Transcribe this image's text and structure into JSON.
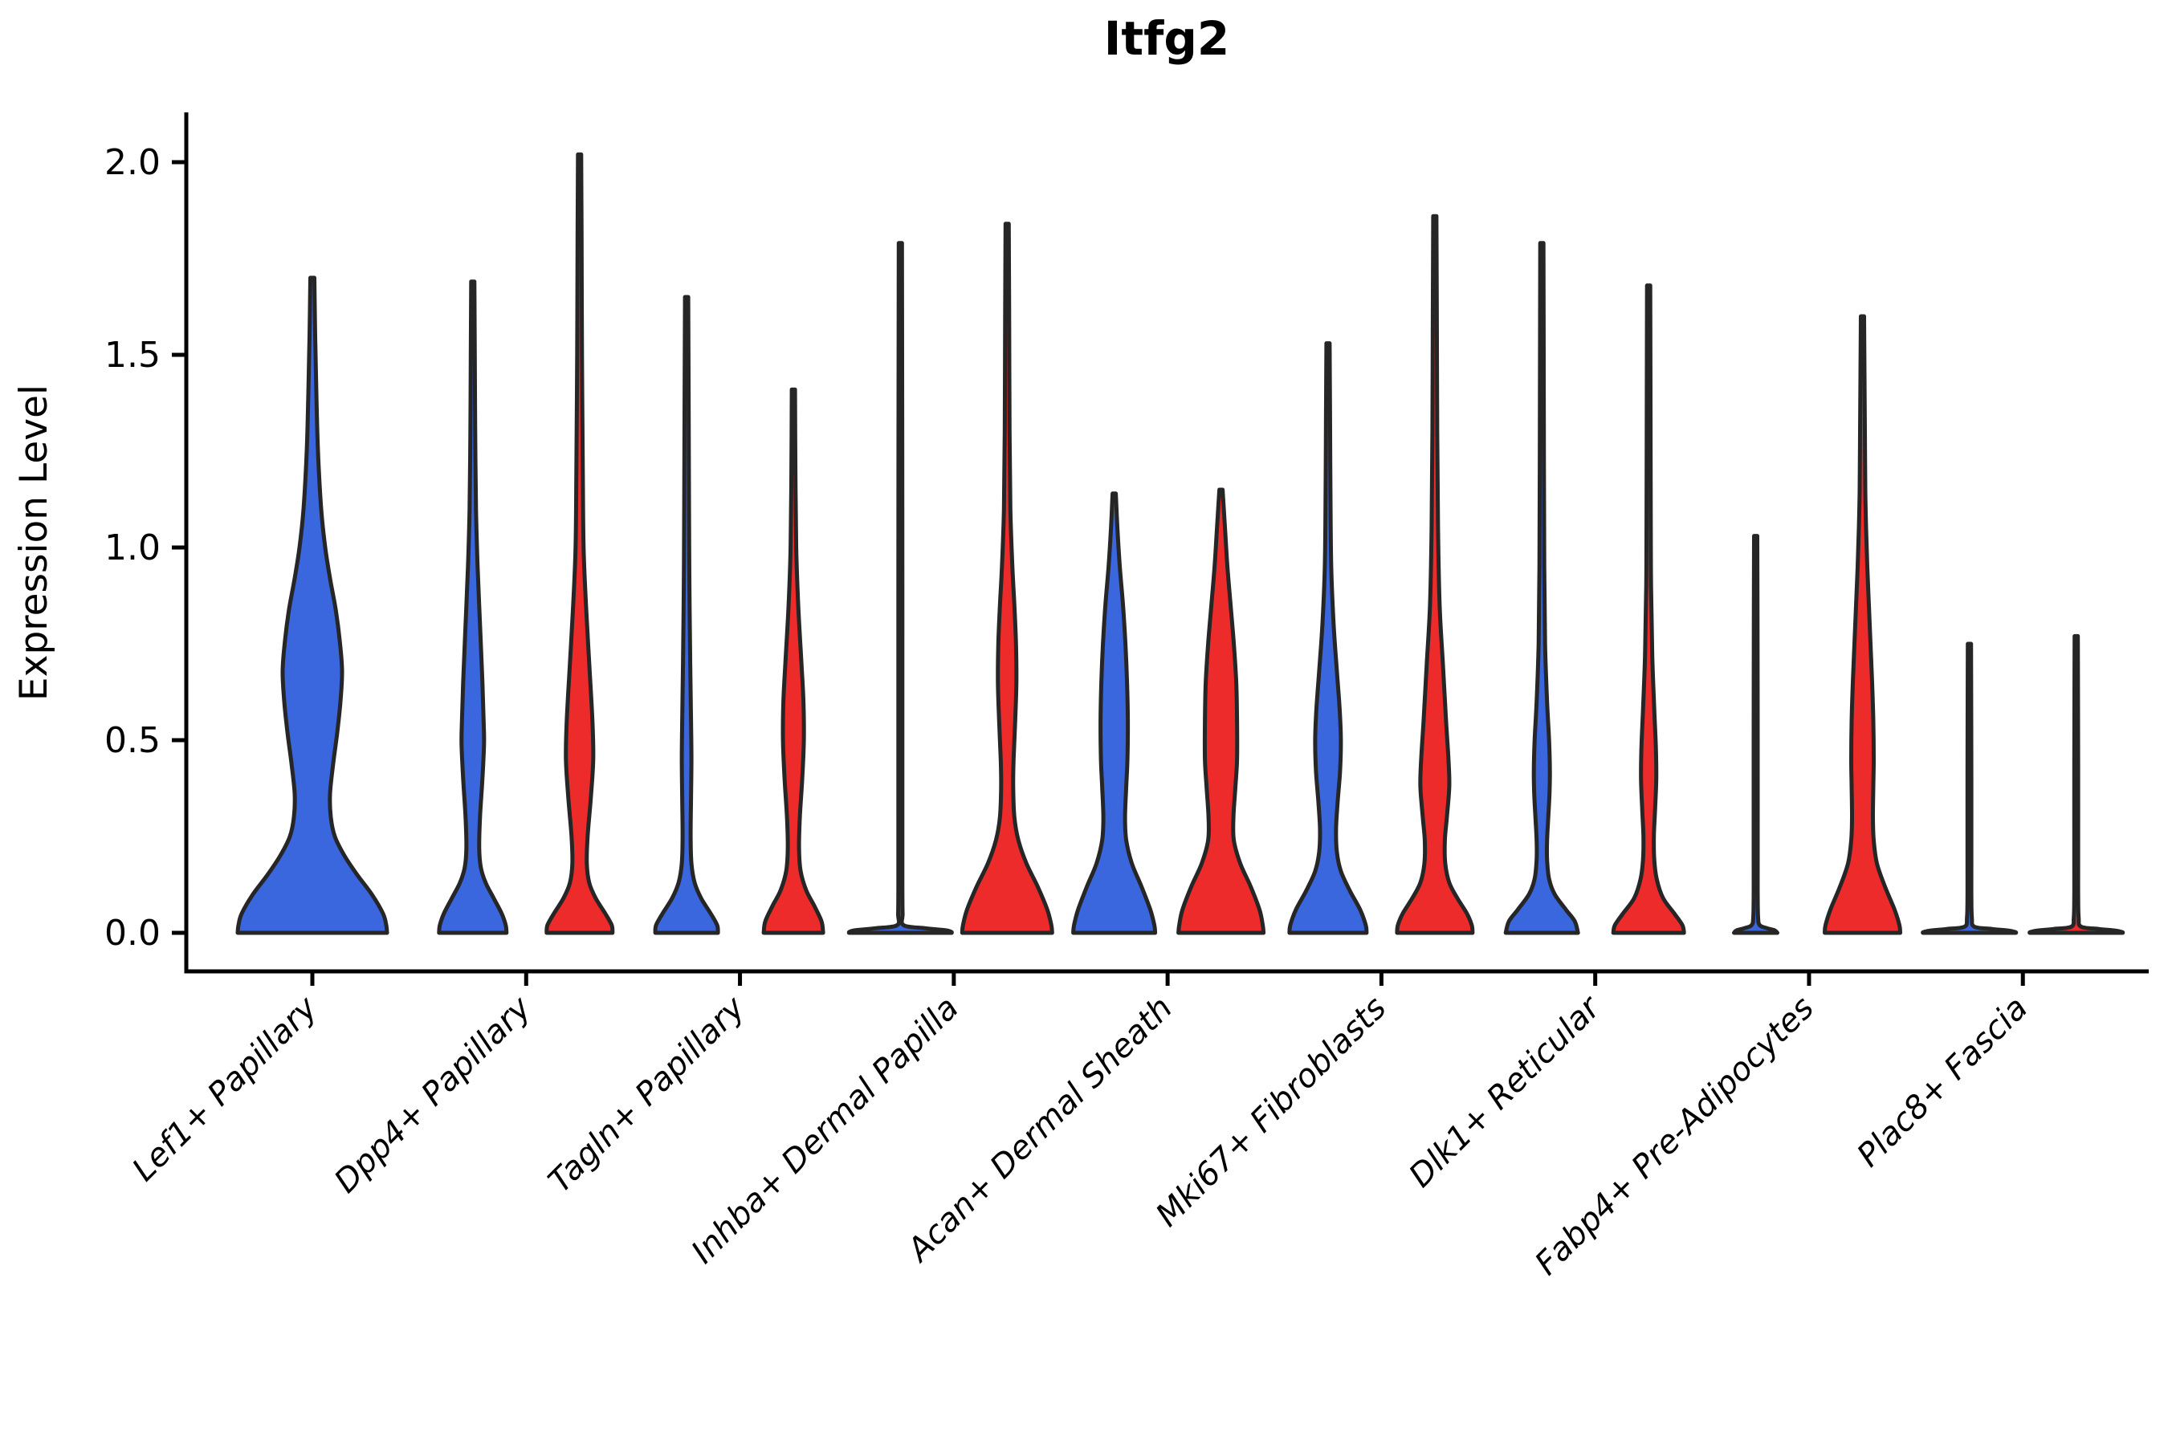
{
  "title": "Itfg2",
  "ylabel": "Expression Level",
  "colors": {
    "group_blue": "#3A66DE",
    "group_red": "#EE2B2B",
    "violin_edge": "#262626",
    "axis": "#000000",
    "background": "#ffffff"
  },
  "chart_data": {
    "type": "violin",
    "title": "Itfg2",
    "ylabel": "Expression Level",
    "xlabel": "",
    "ylim": [
      0,
      2.125
    ],
    "grid": false,
    "legend": "none",
    "y_ticks": [
      0.0,
      0.5,
      1.0,
      1.5,
      2.0
    ],
    "y_tick_labels": [
      "0.0",
      "0.5",
      "1.0",
      "1.5",
      "2.0"
    ],
    "categories": [
      "Lef1+ Papillary",
      "Dpp4+ Papillary",
      "Tagln+ Papillary",
      "Inhba+ Dermal Papilla",
      "Acan+ Dermal Sheath",
      "Mki67+ Fibroblasts",
      "Dlk1+ Reticular",
      "Fabp4+ Pre-Adipocytes",
      "Plac8+ Fascia"
    ],
    "groups": [
      {
        "name": "group-blue",
        "color": "#3A66DE"
      },
      {
        "name": "group-red",
        "color": "#EE2B2B"
      }
    ],
    "violins": [
      {
        "category_index": 0,
        "group": 0,
        "solo": true,
        "max_expression": 1.7,
        "profile": [
          [
            1.7,
            2.5
          ],
          [
            1.55,
            3.5
          ],
          [
            1.4,
            5
          ],
          [
            1.25,
            7
          ],
          [
            1.1,
            11
          ],
          [
            1.0,
            16
          ],
          [
            0.92,
            22
          ],
          [
            0.84,
            29
          ],
          [
            0.76,
            34
          ],
          [
            0.68,
            37
          ],
          [
            0.6,
            35
          ],
          [
            0.52,
            31
          ],
          [
            0.44,
            26
          ],
          [
            0.36,
            22
          ],
          [
            0.3,
            23
          ],
          [
            0.25,
            28
          ],
          [
            0.2,
            40
          ],
          [
            0.15,
            56
          ],
          [
            0.1,
            74
          ],
          [
            0.05,
            88
          ],
          [
            0.02,
            92
          ],
          [
            0,
            93
          ]
        ]
      },
      {
        "category_index": 1,
        "group": 0,
        "solo": false,
        "max_expression": 1.69,
        "profile": [
          [
            1.69,
            2
          ],
          [
            1.5,
            2.5
          ],
          [
            1.3,
            3
          ],
          [
            1.1,
            4
          ],
          [
            0.95,
            6
          ],
          [
            0.8,
            9
          ],
          [
            0.65,
            12
          ],
          [
            0.55,
            13.5
          ],
          [
            0.49,
            14
          ],
          [
            0.4,
            12
          ],
          [
            0.3,
            9
          ],
          [
            0.22,
            8
          ],
          [
            0.17,
            10
          ],
          [
            0.13,
            16
          ],
          [
            0.09,
            26
          ],
          [
            0.05,
            36
          ],
          [
            0.02,
            41
          ],
          [
            0,
            42
          ]
        ]
      },
      {
        "category_index": 1,
        "group": 1,
        "solo": false,
        "max_expression": 2.02,
        "profile": [
          [
            2.02,
            2
          ],
          [
            1.8,
            2.5
          ],
          [
            1.5,
            3
          ],
          [
            1.2,
            4
          ],
          [
            1.0,
            5
          ],
          [
            0.85,
            8
          ],
          [
            0.7,
            12
          ],
          [
            0.55,
            16
          ],
          [
            0.45,
            17
          ],
          [
            0.35,
            14
          ],
          [
            0.25,
            10
          ],
          [
            0.18,
            9
          ],
          [
            0.13,
            12
          ],
          [
            0.09,
            20
          ],
          [
            0.05,
            32
          ],
          [
            0.02,
            40
          ],
          [
            0,
            41
          ]
        ]
      },
      {
        "category_index": 2,
        "group": 0,
        "solo": false,
        "max_expression": 1.65,
        "profile": [
          [
            1.65,
            2
          ],
          [
            1.4,
            2.5
          ],
          [
            1.1,
            3
          ],
          [
            0.9,
            3.5
          ],
          [
            0.7,
            4.5
          ],
          [
            0.55,
            5.5
          ],
          [
            0.45,
            6
          ],
          [
            0.35,
            5.5
          ],
          [
            0.25,
            5
          ],
          [
            0.18,
            6
          ],
          [
            0.13,
            10
          ],
          [
            0.09,
            18
          ],
          [
            0.05,
            30
          ],
          [
            0.02,
            38
          ],
          [
            0,
            39
          ]
        ]
      },
      {
        "category_index": 2,
        "group": 1,
        "solo": false,
        "max_expression": 1.41,
        "profile": [
          [
            1.41,
            2
          ],
          [
            1.2,
            2.5
          ],
          [
            1.0,
            3.5
          ],
          [
            0.85,
            6
          ],
          [
            0.7,
            10
          ],
          [
            0.6,
            12.5
          ],
          [
            0.5,
            13
          ],
          [
            0.4,
            11
          ],
          [
            0.3,
            8
          ],
          [
            0.22,
            7
          ],
          [
            0.16,
            9
          ],
          [
            0.11,
            16
          ],
          [
            0.07,
            26
          ],
          [
            0.03,
            35
          ],
          [
            0,
            37
          ]
        ]
      },
      {
        "category_index": 3,
        "group": 0,
        "solo": false,
        "max_expression": 1.79,
        "profile": [
          [
            1.79,
            2
          ],
          [
            1.5,
            2.2
          ],
          [
            1.2,
            2.4
          ],
          [
            0.9,
            2.5
          ],
          [
            0.6,
            2.5
          ],
          [
            0.3,
            2.5
          ],
          [
            0.12,
            2.5
          ],
          [
            0.05,
            2.8
          ],
          [
            0.02,
            4
          ],
          [
            0.012,
            30
          ],
          [
            0.007,
            55
          ],
          [
            0.003,
            63
          ],
          [
            0,
            64
          ]
        ]
      },
      {
        "category_index": 3,
        "group": 1,
        "solo": false,
        "max_expression": 1.84,
        "profile": [
          [
            1.84,
            2
          ],
          [
            1.6,
            2.5
          ],
          [
            1.3,
            3
          ],
          [
            1.1,
            4
          ],
          [
            0.95,
            6.5
          ],
          [
            0.85,
            9
          ],
          [
            0.75,
            11
          ],
          [
            0.65,
            11.5
          ],
          [
            0.55,
            10
          ],
          [
            0.45,
            8
          ],
          [
            0.38,
            7.5
          ],
          [
            0.3,
            9
          ],
          [
            0.24,
            14
          ],
          [
            0.18,
            24
          ],
          [
            0.12,
            38
          ],
          [
            0.06,
            50
          ],
          [
            0.02,
            55
          ],
          [
            0,
            56
          ]
        ]
      },
      {
        "category_index": 4,
        "group": 0,
        "solo": false,
        "max_expression": 1.14,
        "profile": [
          [
            1.14,
            2
          ],
          [
            1.05,
            4
          ],
          [
            0.95,
            7
          ],
          [
            0.85,
            11
          ],
          [
            0.75,
            14
          ],
          [
            0.65,
            16
          ],
          [
            0.55,
            17
          ],
          [
            0.45,
            16.5
          ],
          [
            0.38,
            15
          ],
          [
            0.3,
            13.5
          ],
          [
            0.24,
            15
          ],
          [
            0.18,
            22
          ],
          [
            0.12,
            34
          ],
          [
            0.06,
            45
          ],
          [
            0.02,
            50
          ],
          [
            0,
            51
          ]
        ]
      },
      {
        "category_index": 4,
        "group": 1,
        "solo": false,
        "max_expression": 1.15,
        "profile": [
          [
            1.15,
            2
          ],
          [
            1.05,
            5
          ],
          [
            0.95,
            8
          ],
          [
            0.85,
            12
          ],
          [
            0.75,
            16
          ],
          [
            0.65,
            19
          ],
          [
            0.55,
            20
          ],
          [
            0.45,
            20
          ],
          [
            0.38,
            18
          ],
          [
            0.3,
            15.5
          ],
          [
            0.24,
            16
          ],
          [
            0.18,
            24
          ],
          [
            0.12,
            37
          ],
          [
            0.06,
            48
          ],
          [
            0.02,
            52
          ],
          [
            0,
            53
          ]
        ]
      },
      {
        "category_index": 5,
        "group": 0,
        "solo": false,
        "max_expression": 1.53,
        "profile": [
          [
            1.53,
            2
          ],
          [
            1.35,
            2.5
          ],
          [
            1.15,
            3
          ],
          [
            0.95,
            4
          ],
          [
            0.8,
            7
          ],
          [
            0.68,
            11
          ],
          [
            0.58,
            14.5
          ],
          [
            0.5,
            16
          ],
          [
            0.42,
            15
          ],
          [
            0.34,
            12
          ],
          [
            0.27,
            10
          ],
          [
            0.21,
            11
          ],
          [
            0.16,
            16
          ],
          [
            0.11,
            27
          ],
          [
            0.06,
            40
          ],
          [
            0.02,
            47
          ],
          [
            0,
            48
          ]
        ]
      },
      {
        "category_index": 5,
        "group": 1,
        "solo": false,
        "max_expression": 1.86,
        "profile": [
          [
            1.86,
            2
          ],
          [
            1.6,
            2.5
          ],
          [
            1.3,
            3
          ],
          [
            1.05,
            4
          ],
          [
            0.85,
            6
          ],
          [
            0.7,
            10
          ],
          [
            0.55,
            14
          ],
          [
            0.45,
            17
          ],
          [
            0.38,
            18
          ],
          [
            0.3,
            15
          ],
          [
            0.24,
            12.5
          ],
          [
            0.18,
            13
          ],
          [
            0.13,
            18
          ],
          [
            0.09,
            28
          ],
          [
            0.05,
            40
          ],
          [
            0.02,
            46
          ],
          [
            0,
            47
          ]
        ]
      },
      {
        "category_index": 6,
        "group": 0,
        "solo": false,
        "max_expression": 1.79,
        "profile": [
          [
            1.79,
            2
          ],
          [
            1.5,
            2.3
          ],
          [
            1.2,
            2.6
          ],
          [
            0.95,
            3
          ],
          [
            0.75,
            4
          ],
          [
            0.6,
            6.5
          ],
          [
            0.5,
            9
          ],
          [
            0.42,
            10
          ],
          [
            0.36,
            9.5
          ],
          [
            0.3,
            8
          ],
          [
            0.24,
            6.5
          ],
          [
            0.19,
            6.5
          ],
          [
            0.14,
            9
          ],
          [
            0.1,
            16
          ],
          [
            0.06,
            30
          ],
          [
            0.03,
            41
          ],
          [
            0,
            45
          ]
        ]
      },
      {
        "category_index": 6,
        "group": 1,
        "solo": false,
        "max_expression": 1.68,
        "profile": [
          [
            1.68,
            2
          ],
          [
            1.4,
            2.3
          ],
          [
            1.1,
            2.6
          ],
          [
            0.9,
            3
          ],
          [
            0.72,
            4.5
          ],
          [
            0.58,
            7
          ],
          [
            0.48,
            9
          ],
          [
            0.4,
            9.5
          ],
          [
            0.32,
            8
          ],
          [
            0.25,
            6.5
          ],
          [
            0.19,
            7
          ],
          [
            0.14,
            10
          ],
          [
            0.09,
            18
          ],
          [
            0.05,
            32
          ],
          [
            0.02,
            42
          ],
          [
            0,
            44
          ]
        ]
      },
      {
        "category_index": 7,
        "group": 0,
        "solo": false,
        "max_expression": 1.03,
        "profile": [
          [
            1.03,
            2
          ],
          [
            0.8,
            2.3
          ],
          [
            0.5,
            2.5
          ],
          [
            0.2,
            2.5
          ],
          [
            0.1,
            2.5
          ],
          [
            0.04,
            3
          ],
          [
            0.02,
            5
          ],
          [
            0.012,
            14
          ],
          [
            0.006,
            24
          ],
          [
            0,
            27
          ]
        ]
      },
      {
        "category_index": 7,
        "group": 1,
        "solo": false,
        "max_expression": 1.6,
        "profile": [
          [
            1.6,
            2
          ],
          [
            1.45,
            2.5
          ],
          [
            1.3,
            3
          ],
          [
            1.15,
            3.5
          ],
          [
            1.05,
            4.5
          ],
          [
            0.95,
            6
          ],
          [
            0.85,
            8
          ],
          [
            0.75,
            10
          ],
          [
            0.65,
            12
          ],
          [
            0.55,
            13.5
          ],
          [
            0.45,
            14
          ],
          [
            0.38,
            13.5
          ],
          [
            0.3,
            13
          ],
          [
            0.24,
            14
          ],
          [
            0.18,
            18
          ],
          [
            0.12,
            28
          ],
          [
            0.06,
            40
          ],
          [
            0.02,
            46
          ],
          [
            0,
            47
          ]
        ]
      },
      {
        "category_index": 8,
        "group": 0,
        "solo": false,
        "max_expression": 0.75,
        "profile": [
          [
            0.75,
            2
          ],
          [
            0.6,
            2.2
          ],
          [
            0.4,
            2.4
          ],
          [
            0.2,
            2.4
          ],
          [
            0.1,
            2.4
          ],
          [
            0.04,
            3
          ],
          [
            0.016,
            6
          ],
          [
            0.01,
            28
          ],
          [
            0.006,
            48
          ],
          [
            0.002,
            57
          ],
          [
            0,
            58
          ]
        ]
      },
      {
        "category_index": 8,
        "group": 1,
        "solo": false,
        "max_expression": 0.77,
        "profile": [
          [
            0.77,
            2
          ],
          [
            0.62,
            2.2
          ],
          [
            0.42,
            2.4
          ],
          [
            0.2,
            2.4
          ],
          [
            0.1,
            2.4
          ],
          [
            0.04,
            3
          ],
          [
            0.016,
            6
          ],
          [
            0.01,
            28
          ],
          [
            0.006,
            48
          ],
          [
            0.002,
            57
          ],
          [
            0,
            58
          ]
        ]
      }
    ]
  }
}
